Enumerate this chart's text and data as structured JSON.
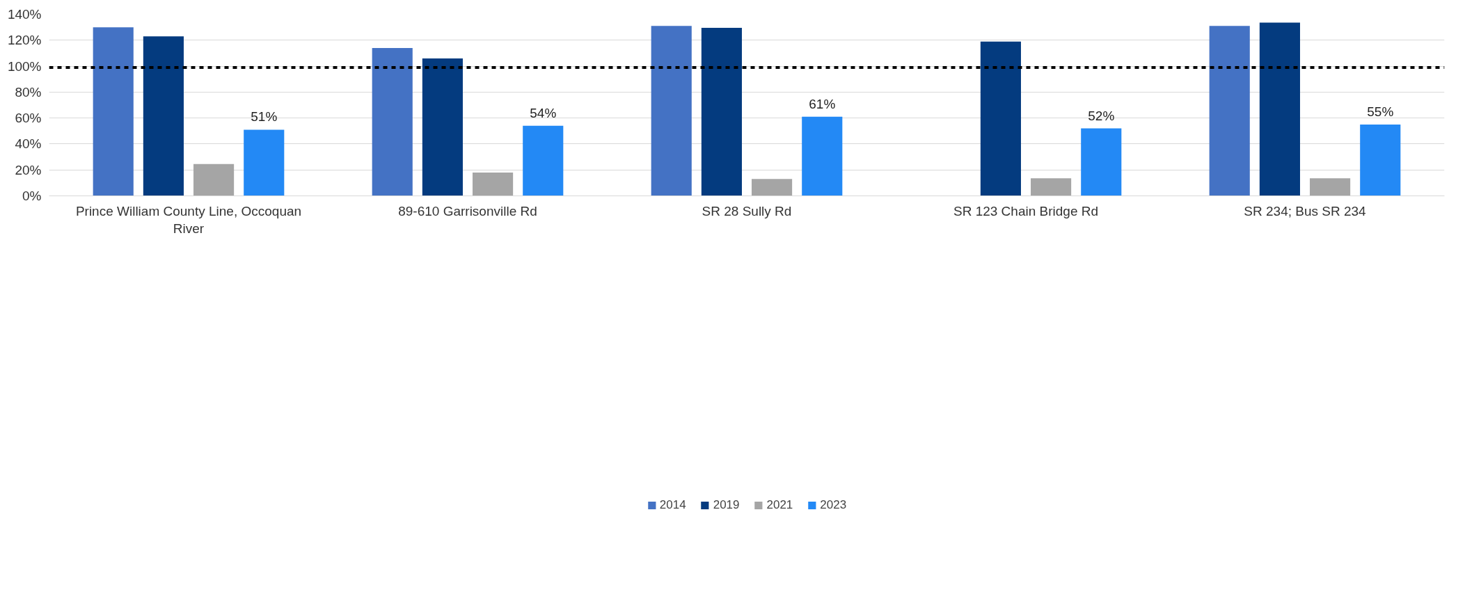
{
  "chart_data": {
    "type": "bar",
    "categories": [
      "Prince William County Line, Occoquan River",
      "89-610 Garrisonville Rd",
      "SR 28 Sully Rd",
      "SR 123 Chain Bridge Rd",
      "SR 234; Bus SR 234"
    ],
    "series": [
      {
        "name": "2014",
        "color": "#4472c4",
        "values": [
          130,
          114,
          131,
          null,
          131
        ]
      },
      {
        "name": "2019",
        "color": "#043b7f",
        "values": [
          123,
          106,
          129.5,
          119,
          133.5
        ]
      },
      {
        "name": "2021",
        "color": "#a5a5a5",
        "values": [
          24.5,
          18,
          13,
          13.5,
          13.5
        ]
      },
      {
        "name": "2023",
        "color": "#2389f5",
        "values": [
          51,
          54,
          61,
          52,
          55
        ],
        "value_labels": [
          "51%",
          "54%",
          "61%",
          "52%",
          "55%"
        ]
      }
    ],
    "ylim": [
      0,
      140
    ],
    "yticks": [
      {
        "value": 0,
        "label": "0%"
      },
      {
        "value": 20,
        "label": "20%"
      },
      {
        "value": 40,
        "label": "40%"
      },
      {
        "value": 60,
        "label": "60%"
      },
      {
        "value": 80,
        "label": "80%"
      },
      {
        "value": 100,
        "label": "100%"
      },
      {
        "value": 120,
        "label": "120%"
      },
      {
        "value": 140,
        "label": "140%"
      }
    ],
    "ref_lines": [
      {
        "axis": "y",
        "value": 99,
        "color": "#000000",
        "line_style": "dashed"
      }
    ],
    "grid": "y",
    "legend": "bottom"
  }
}
